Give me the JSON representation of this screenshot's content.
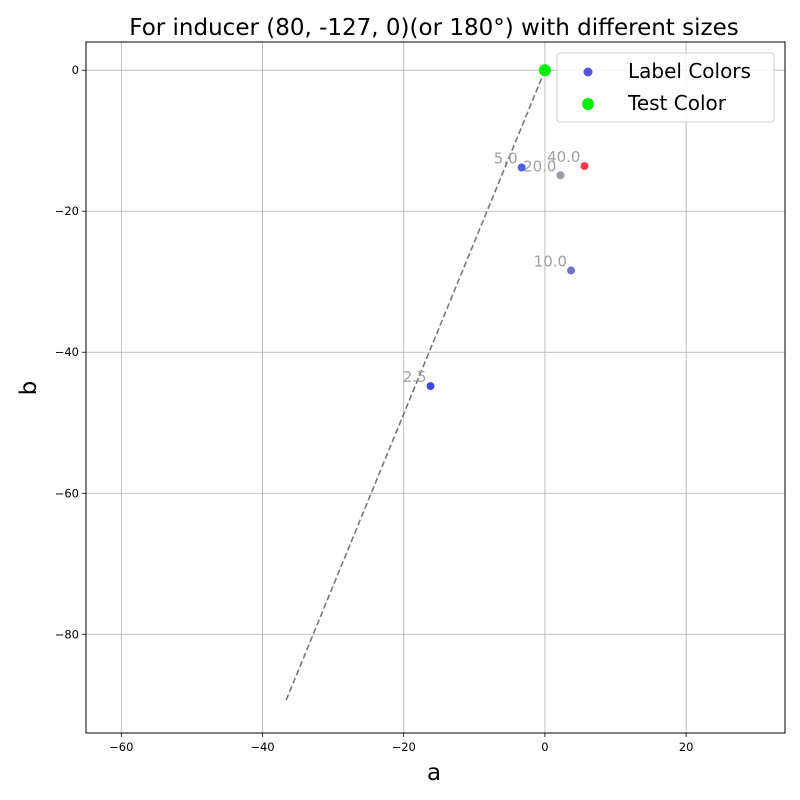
{
  "chart_data": {
    "type": "scatter",
    "title": "For inducer (80, -127, 0)(or 180°) with different sizes",
    "xlabel": "a",
    "ylabel": "b",
    "xlim": [
      -65,
      34
    ],
    "ylim": [
      -94,
      4
    ],
    "xticks": [
      -60,
      -40,
      -20,
      0,
      20
    ],
    "yticks": [
      0,
      -20,
      -40,
      -60,
      -80
    ],
    "xtick_labels": [
      "−60",
      "−40",
      "−20",
      "0",
      "20"
    ],
    "ytick_labels": [
      "0",
      "−20",
      "−40",
      "−60",
      "−80"
    ],
    "grid": true,
    "legend_position": "top-right",
    "series": [
      {
        "name": "Label Colors",
        "legend_color": "#5555dd",
        "points": [
          {
            "x": -16.2,
            "y": -44.8,
            "label": "2.5",
            "color": "#3f48e8"
          },
          {
            "x": -3.3,
            "y": -13.8,
            "label": "5.0",
            "color": "#4a5be6"
          },
          {
            "x": 3.7,
            "y": -28.4,
            "label": "10.0",
            "color": "#7274c8"
          },
          {
            "x": 2.2,
            "y": -14.9,
            "label": "20.0",
            "color": "#9a9aa6"
          },
          {
            "x": 5.6,
            "y": -13.6,
            "label": "40.0",
            "color": "#ef3b47"
          }
        ]
      },
      {
        "name": "Test Color",
        "legend_color": "#00ee00",
        "points": [
          {
            "x": 0,
            "y": 0,
            "color": "#00ee00"
          }
        ]
      }
    ],
    "reference_line": {
      "style": "dashed",
      "color": "#777777",
      "x": [
        0,
        -36.8
      ],
      "y": [
        0,
        -89.7
      ]
    },
    "point_label_color": "#a0a0a0"
  }
}
